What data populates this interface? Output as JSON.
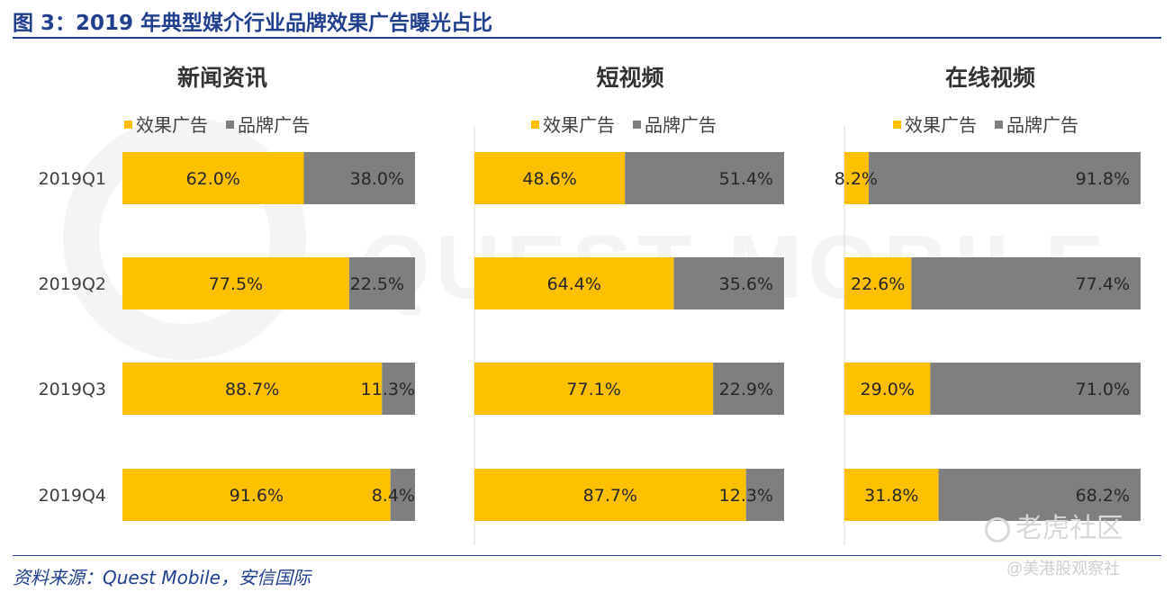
{
  "figure": {
    "title": "图 3：2019 年典型媒介行业品牌效果广告曝光占比",
    "source": "资料来源：Quest Mobile，安信国际"
  },
  "watermarks": {
    "background": "QUEST MOBILE",
    "corner": "老虎社区",
    "corner_sub": "@美港股观察社"
  },
  "colors": {
    "effect": "#ffc000",
    "brand": "#7f7f7f",
    "title": "#1f3f8f"
  },
  "chart_data": [
    {
      "type": "bar",
      "stacked": true,
      "orientation": "horizontal",
      "title": "新闻资讯",
      "categories": [
        "2019Q1",
        "2019Q2",
        "2019Q3",
        "2019Q4"
      ],
      "series": [
        {
          "name": "效果广告",
          "values": [
            62.0,
            77.5,
            88.7,
            91.6
          ]
        },
        {
          "name": "品牌广告",
          "values": [
            38.0,
            22.5,
            11.3,
            8.4
          ]
        }
      ],
      "labels": [
        [
          "62.0%",
          "38.0%"
        ],
        [
          "77.5%",
          "22.5%"
        ],
        [
          "88.7%",
          "11.3%"
        ],
        [
          "91.6%",
          "8.4%"
        ]
      ],
      "xlim": [
        0,
        100
      ],
      "legend": "top",
      "grid": false
    },
    {
      "type": "bar",
      "stacked": true,
      "orientation": "horizontal",
      "title": "短视频",
      "categories": [
        "2019Q1",
        "2019Q2",
        "2019Q3",
        "2019Q4"
      ],
      "series": [
        {
          "name": "效果广告",
          "values": [
            48.6,
            64.4,
            77.1,
            87.7
          ]
        },
        {
          "name": "品牌广告",
          "values": [
            51.4,
            35.6,
            22.9,
            12.3
          ]
        }
      ],
      "labels": [
        [
          "48.6%",
          "51.4%"
        ],
        [
          "64.4%",
          "35.6%"
        ],
        [
          "77.1%",
          "22.9%"
        ],
        [
          "87.7%",
          "12.3%"
        ]
      ],
      "xlim": [
        0,
        100
      ],
      "legend": "top",
      "grid": false
    },
    {
      "type": "bar",
      "stacked": true,
      "orientation": "horizontal",
      "title": "在线视频",
      "categories": [
        "2019Q1",
        "2019Q2",
        "2019Q3",
        "2019Q4"
      ],
      "series": [
        {
          "name": "效果广告",
          "values": [
            8.2,
            22.6,
            29.0,
            31.8
          ]
        },
        {
          "name": "品牌广告",
          "values": [
            91.8,
            77.4,
            71.0,
            68.2
          ]
        }
      ],
      "labels": [
        [
          "8.2%",
          "91.8%"
        ],
        [
          "22.6%",
          "77.4%"
        ],
        [
          "29.0%",
          "71.0%"
        ],
        [
          "31.8%",
          "68.2%"
        ]
      ],
      "xlim": [
        0,
        100
      ],
      "legend": "top",
      "grid": false
    }
  ]
}
